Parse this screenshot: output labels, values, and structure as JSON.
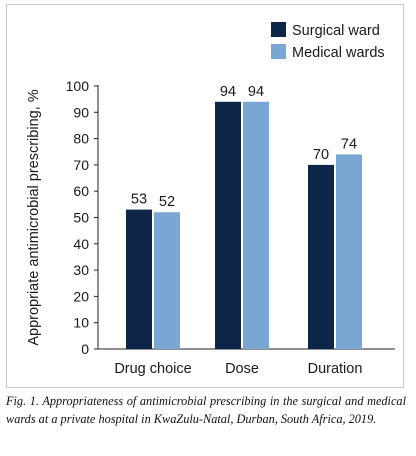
{
  "chart_data": {
    "type": "bar",
    "categories": [
      "Drug choice",
      "Dose",
      "Duration"
    ],
    "series": [
      {
        "name": "Surgical ward",
        "values": [
          53,
          94,
          70
        ],
        "labels": [
          "53",
          "94",
          "70"
        ],
        "color": "#0d2546"
      },
      {
        "name": "Medical wards",
        "values": [
          52,
          94,
          74
        ],
        "labels": [
          "52",
          "94",
          "74"
        ],
        "color": "#79a6d2"
      }
    ],
    "ylabel": "Appropriate antimicrobial prescribing, %",
    "xlabel": "",
    "ylim": [
      0,
      100
    ],
    "yticks": [
      "0",
      "10",
      "20",
      "30",
      "40",
      "50",
      "60",
      "70",
      "80",
      "90",
      "100"
    ],
    "grid": false,
    "legend_position": "top-right"
  },
  "caption": "Fig. 1. Appropriateness of antimicrobial prescribing in the surgical and medical wards at a private hospital in KwaZulu-Natal, Durban, South Africa, 2019."
}
